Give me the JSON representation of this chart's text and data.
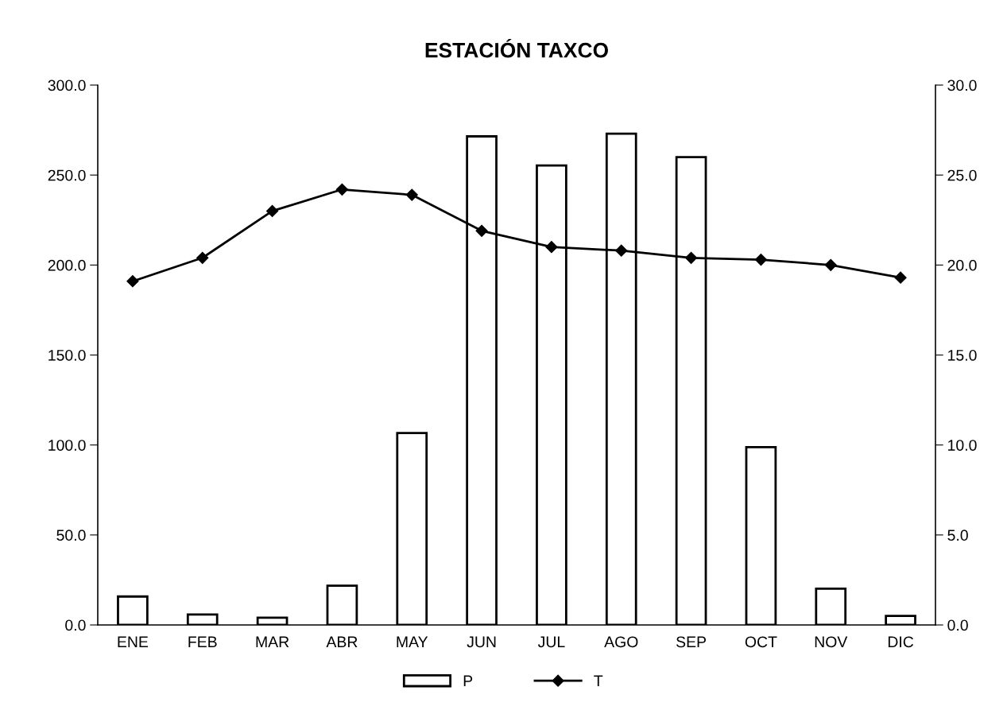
{
  "chart_data": {
    "type": "bar",
    "title": "ESTACIÓN TAXCO",
    "categories": [
      "ENE",
      "FEB",
      "MAR",
      "ABR",
      "MAY",
      "JUN",
      "JUL",
      "AGO",
      "SEP",
      "OCT",
      "NOV",
      "DIC"
    ],
    "series": [
      {
        "name": "P",
        "color": "#ffffff",
        "values": [
          15.8,
          5.8,
          4.0,
          21.8,
          106.6,
          271.5,
          255.3,
          273.0,
          260.0,
          98.8,
          20.2,
          5.0
        ]
      },
      {
        "name": "T",
        "type": "line",
        "axis": "y2",
        "color": "#000000",
        "marker": "diamond",
        "values": [
          19.1,
          20.4,
          23.0,
          24.2,
          23.9,
          21.9,
          21.0,
          20.8,
          20.4,
          20.3,
          20.0,
          19.3
        ]
      }
    ],
    "ylim": [
      0,
      300
    ],
    "yticks": [
      {
        "value": 0,
        "label": "0.0"
      },
      {
        "value": 50,
        "label": "50.0"
      },
      {
        "value": 100,
        "label": "100.0"
      },
      {
        "value": 150,
        "label": "150.0"
      },
      {
        "value": 200,
        "label": "200.0"
      },
      {
        "value": 250,
        "label": "250.0"
      },
      {
        "value": 300,
        "label": "300.0"
      }
    ],
    "y2lim": [
      0,
      30
    ],
    "y2ticks": [
      {
        "value": 0,
        "label": "0.0"
      },
      {
        "value": 5,
        "label": "5.0"
      },
      {
        "value": 10,
        "label": "10.0"
      },
      {
        "value": 15,
        "label": "15.0"
      },
      {
        "value": 20,
        "label": "20.0"
      },
      {
        "value": 25,
        "label": "25.0"
      },
      {
        "value": 30,
        "label": "30.0"
      }
    ],
    "grid": false,
    "legend": "bottom"
  }
}
